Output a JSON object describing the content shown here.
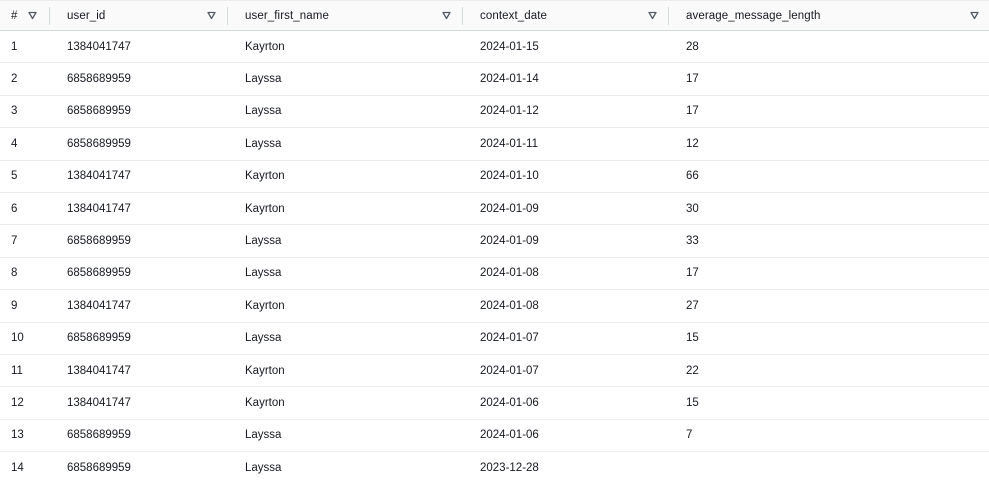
{
  "columns": [
    {
      "key": "idx",
      "label": "#"
    },
    {
      "key": "user_id",
      "label": "user_id"
    },
    {
      "key": "user_first_name",
      "label": "user_first_name"
    },
    {
      "key": "context_date",
      "label": "context_date"
    },
    {
      "key": "average_message_length",
      "label": "average_message_length"
    }
  ],
  "rows": [
    {
      "idx": "1",
      "user_id": "1384041747",
      "user_first_name": "Kayrton",
      "context_date": "2024-01-15",
      "average_message_length": "28"
    },
    {
      "idx": "2",
      "user_id": "6858689959",
      "user_first_name": "Layssa",
      "context_date": "2024-01-14",
      "average_message_length": "17"
    },
    {
      "idx": "3",
      "user_id": "6858689959",
      "user_first_name": "Layssa",
      "context_date": "2024-01-12",
      "average_message_length": "17"
    },
    {
      "idx": "4",
      "user_id": "6858689959",
      "user_first_name": "Layssa",
      "context_date": "2024-01-11",
      "average_message_length": "12"
    },
    {
      "idx": "5",
      "user_id": "1384041747",
      "user_first_name": "Kayrton",
      "context_date": "2024-01-10",
      "average_message_length": "66"
    },
    {
      "idx": "6",
      "user_id": "1384041747",
      "user_first_name": "Kayrton",
      "context_date": "2024-01-09",
      "average_message_length": "30"
    },
    {
      "idx": "7",
      "user_id": "6858689959",
      "user_first_name": "Layssa",
      "context_date": "2024-01-09",
      "average_message_length": "33"
    },
    {
      "idx": "8",
      "user_id": "6858689959",
      "user_first_name": "Layssa",
      "context_date": "2024-01-08",
      "average_message_length": "17"
    },
    {
      "idx": "9",
      "user_id": "1384041747",
      "user_first_name": "Kayrton",
      "context_date": "2024-01-08",
      "average_message_length": "27"
    },
    {
      "idx": "10",
      "user_id": "6858689959",
      "user_first_name": "Layssa",
      "context_date": "2024-01-07",
      "average_message_length": "15"
    },
    {
      "idx": "11",
      "user_id": "1384041747",
      "user_first_name": "Kayrton",
      "context_date": "2024-01-07",
      "average_message_length": "22"
    },
    {
      "idx": "12",
      "user_id": "1384041747",
      "user_first_name": "Kayrton",
      "context_date": "2024-01-06",
      "average_message_length": "15"
    },
    {
      "idx": "13",
      "user_id": "6858689959",
      "user_first_name": "Layssa",
      "context_date": "2024-01-06",
      "average_message_length": "7"
    },
    {
      "idx": "14",
      "user_id": "6858689959",
      "user_first_name": "Layssa",
      "context_date": "2023-12-28",
      "average_message_length": ""
    }
  ],
  "icons": {
    "sort": "sort-down-triangle-icon"
  },
  "colors": {
    "header_bg": "#fafafa",
    "border": "#eaeded",
    "text": "#16191f",
    "icon": "#545b64"
  }
}
